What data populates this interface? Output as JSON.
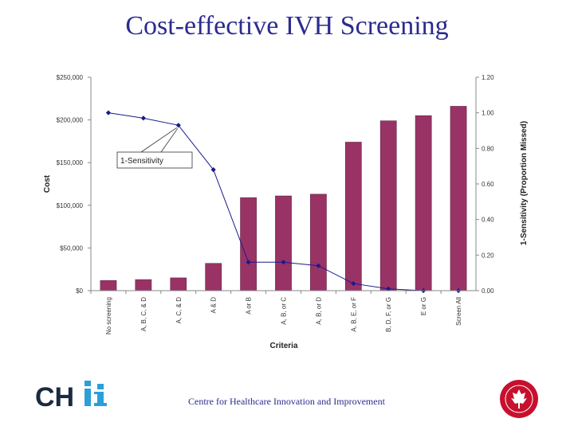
{
  "slide": {
    "title": "Cost-effective IVH Screening",
    "footer": "Centre for Healthcare Innovation and Improvement",
    "logo_text": "CHIi"
  },
  "colors": {
    "bar": "#993366",
    "line": "#1a1a8c",
    "title": "#2b2b8f"
  },
  "chart_data": {
    "type": "bar",
    "xlabel": "Criteria",
    "ylabel": "Cost",
    "y2label": "1-Sensitivity (Proportion Missed)",
    "categories": [
      "No screening",
      "A, B, C, & D",
      "A, C, & D",
      "A & D",
      "A or B",
      "A, B, or C",
      "A, B, or D",
      "A, B, E, or F",
      "B, D, F, or G",
      "E or G",
      "Screen All"
    ],
    "series": [
      {
        "name": "Cost",
        "axis": "left",
        "type": "bar",
        "values": [
          12000,
          13000,
          15000,
          32000,
          109000,
          111000,
          113000,
          174000,
          199000,
          205000,
          216000
        ]
      },
      {
        "name": "1-Sensitivity",
        "axis": "right",
        "type": "line",
        "values": [
          1.0,
          0.97,
          0.93,
          0.68,
          0.16,
          0.16,
          0.14,
          0.04,
          0.01,
          0.0,
          0.0
        ]
      }
    ],
    "ylim": [
      0,
      250000
    ],
    "y2lim": [
      0,
      1.2
    ],
    "yticks": [
      "$0",
      "$50,000",
      "$100,000",
      "$150,000",
      "$200,000",
      "$250,000"
    ],
    "y2ticks": [
      "0.00",
      "0.20",
      "0.40",
      "0.60",
      "0.80",
      "1.00",
      "1.20"
    ],
    "annotation": "1-Sensitivity"
  }
}
